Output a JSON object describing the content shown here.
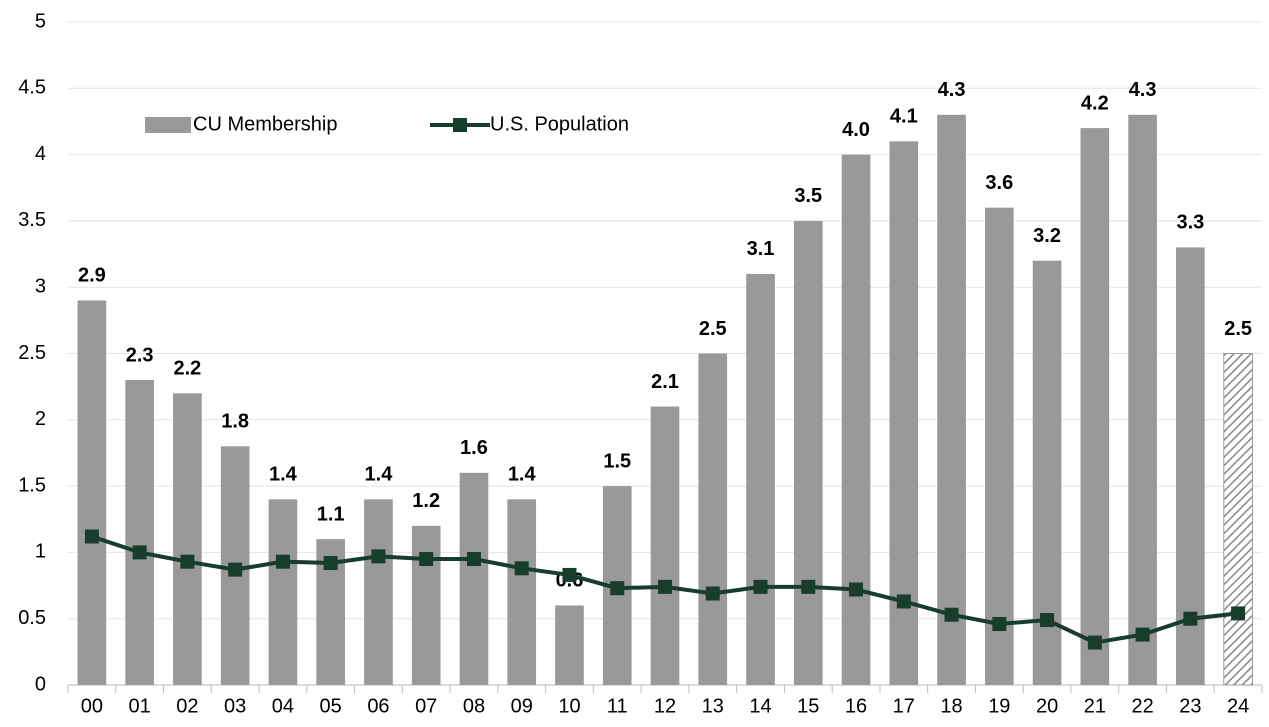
{
  "chart_data": {
    "type": "bar",
    "categories": [
      "00",
      "01",
      "02",
      "03",
      "04",
      "05",
      "06",
      "07",
      "08",
      "09",
      "10",
      "11",
      "12",
      "13",
      "14",
      "15",
      "16",
      "17",
      "18",
      "19",
      "20",
      "21",
      "22",
      "23",
      "24"
    ],
    "series": [
      {
        "name": "CU Membership",
        "type": "bar",
        "color": "#999999",
        "values": [
          2.9,
          2.3,
          2.2,
          1.8,
          1.4,
          1.1,
          1.4,
          1.2,
          1.6,
          1.4,
          0.6,
          1.5,
          2.1,
          2.5,
          3.1,
          3.5,
          4.0,
          4.1,
          4.3,
          3.6,
          3.2,
          4.2,
          4.3,
          3.3,
          2.5
        ],
        "value_labels": [
          "2.9",
          "2.3",
          "2.2",
          "1.8",
          "1.4",
          "1.1",
          "1.4",
          "1.2",
          "1.6",
          "1.4",
          "0.6",
          "1.5",
          "2.1",
          "2.5",
          "3.1",
          "3.5",
          "4.0",
          "4.1",
          "4.3",
          "3.6",
          "3.2",
          "4.2",
          "4.3",
          "3.3",
          "2.5"
        ],
        "hatched_categories": [
          "24"
        ]
      },
      {
        "name": "U.S. Population",
        "type": "line",
        "color": "#173d2c",
        "values": [
          1.12,
          1.0,
          0.93,
          0.87,
          0.93,
          0.92,
          0.97,
          0.95,
          0.95,
          0.88,
          0.83,
          0.73,
          0.74,
          0.69,
          0.74,
          0.74,
          0.72,
          0.63,
          0.53,
          0.46,
          0.49,
          0.32,
          0.38,
          0.5,
          0.54
        ]
      }
    ],
    "ylim": [
      0,
      5
    ],
    "yticks": [
      0,
      0.5,
      1,
      1.5,
      2,
      2.5,
      3,
      3.5,
      4,
      4.5,
      5
    ],
    "grid": true,
    "legend": "upper left"
  }
}
